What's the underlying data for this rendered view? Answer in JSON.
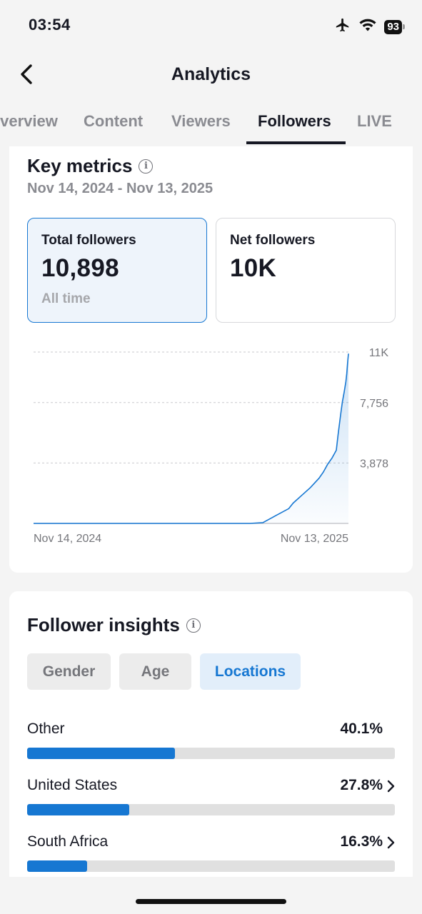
{
  "status_bar": {
    "time": "03:54",
    "battery": "93",
    "icons": [
      "airplane-icon",
      "wifi-icon",
      "battery-icon"
    ]
  },
  "nav": {
    "title": "Analytics",
    "back_icon": "chevron-left-icon"
  },
  "tabs": [
    {
      "label": "Overview",
      "active": false
    },
    {
      "label": "Content",
      "active": false
    },
    {
      "label": "Viewers",
      "active": false
    },
    {
      "label": "Followers",
      "active": true
    },
    {
      "label": "LIVE",
      "active": false
    }
  ],
  "key_metrics": {
    "title": "Key metrics",
    "date_range": "Nov 14, 2024 - Nov 13, 2025",
    "cards": [
      {
        "label": "Total followers",
        "value": "10,898",
        "sub": "All time",
        "selected": true
      },
      {
        "label": "Net followers",
        "value": "10K",
        "sub": "",
        "selected": false
      }
    ]
  },
  "chart_data": {
    "type": "area",
    "title": "",
    "xlabel": "",
    "ylabel": "",
    "x_tick_labels": [
      "Nov 14, 2024",
      "Nov 13, 2025"
    ],
    "y_tick_labels": [
      "11K",
      "7,756",
      "3,878"
    ],
    "y_ticks": [
      0,
      3878,
      7756,
      11000
    ],
    "ylim": [
      0,
      11000
    ],
    "grid": true,
    "line_color": "#1677d2",
    "series": [
      {
        "x": [
          0,
          250,
          265,
          280,
          295,
          300,
          310,
          320,
          330,
          335,
          340,
          345,
          350,
          352,
          355,
          357,
          359,
          361,
          362,
          363,
          364
        ],
        "values": [
          0,
          0,
          50,
          500,
          950,
          1300,
          1800,
          2300,
          2900,
          3300,
          3800,
          4200,
          4700,
          5700,
          7000,
          7800,
          8400,
          9100,
          9600,
          10300,
          10898
        ]
      }
    ]
  },
  "follower_insights": {
    "title": "Follower insights",
    "filters": [
      {
        "label": "Gender",
        "active": false
      },
      {
        "label": "Age",
        "active": false
      },
      {
        "label": "Locations",
        "active": true
      }
    ],
    "locations": [
      {
        "name": "Other",
        "percent": "40.1%",
        "value": 40.1,
        "chevron": false
      },
      {
        "name": "United States",
        "percent": "27.8%",
        "value": 27.8,
        "chevron": true
      },
      {
        "name": "South Africa",
        "percent": "16.3%",
        "value": 16.3,
        "chevron": true
      }
    ]
  }
}
